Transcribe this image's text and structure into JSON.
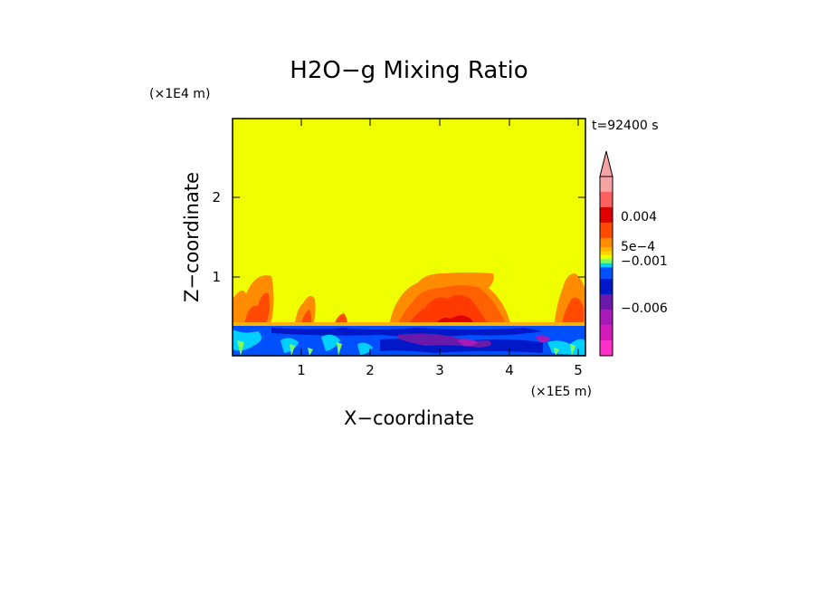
{
  "chart_data": {
    "type": "heatmap",
    "title": "H2O−g Mixing Ratio",
    "xlabel": "X−coordinate",
    "ylabel": "Z−coordinate",
    "x_scale_label": "(×1E5 m)",
    "y_scale_label": "(×1E4 m)",
    "time_label": "t=92400 s",
    "xlim": [
      0,
      5.15
    ],
    "ylim": [
      0,
      3
    ],
    "x_ticks": [
      "1",
      "2",
      "3",
      "4",
      "5"
    ],
    "y_ticks": [
      "1",
      "2"
    ],
    "colorbar": {
      "labels": [
        "0.004",
        "5e−4",
        "−0.001",
        "−0.006"
      ],
      "colors_top_to_bottom": [
        "#f7a3a3",
        "#ff6060",
        "#e00000",
        "#ff4a00",
        "#ff8c00",
        "#ffb000",
        "#ffd400",
        "#f0ff00",
        "#7cff5a",
        "#00d0ff",
        "#0050ff",
        "#0018c8",
        "#6a1aaa",
        "#a81ab8",
        "#d21ab8",
        "#ff30c8"
      ]
    },
    "field_regions": [
      {
        "zone": "background",
        "color": "#f0ff00",
        "value_range": "0 to 5e−4"
      },
      {
        "zone": "plume",
        "color": "#ff8c00",
        "value_range": "0.001 to 0.004"
      },
      {
        "zone": "surface layer",
        "color": "#0018c8",
        "value_range": "−0.006 to −0.001"
      }
    ]
  }
}
